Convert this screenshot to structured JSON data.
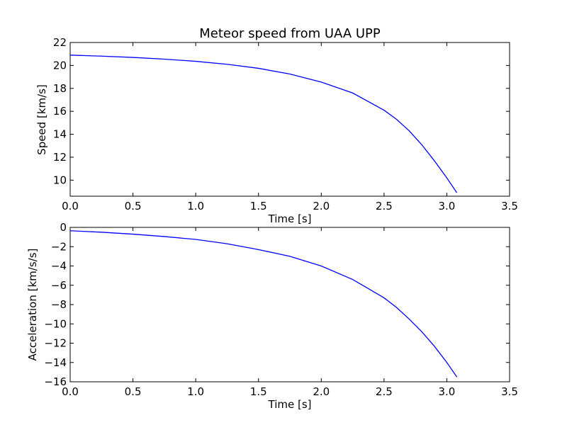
{
  "chart_data": [
    {
      "type": "line",
      "title": "Meteor speed from  UAA UPP",
      "xlabel": "Time [s]",
      "ylabel": "Speed [km/s]",
      "xlim": [
        0,
        3.5
      ],
      "ylim": [
        8.6,
        22
      ],
      "xticks": [
        0,
        0.5,
        1,
        1.5,
        2,
        2.5,
        3,
        3.5
      ],
      "xtick_labels": [
        "0.0",
        "0.5",
        "1.0",
        "1.5",
        "2.0",
        "2.5",
        "3.0",
        "3.5"
      ],
      "yticks": [
        10,
        12,
        14,
        16,
        18,
        20,
        22
      ],
      "ytick_labels": [
        "10",
        "12",
        "14",
        "16",
        "18",
        "20",
        "22"
      ],
      "grid": false,
      "series": [
        {
          "color": "#0000ff",
          "x": [
            0,
            0.25,
            0.5,
            0.75,
            1.0,
            1.25,
            1.5,
            1.75,
            2.0,
            2.25,
            2.5,
            2.6,
            2.7,
            2.8,
            2.9,
            3.0,
            3.08
          ],
          "y": [
            20.9,
            20.81,
            20.7,
            20.55,
            20.36,
            20.1,
            19.75,
            19.25,
            18.55,
            17.6,
            16.1,
            15.3,
            14.3,
            13.1,
            11.7,
            10.2,
            8.9
          ]
        }
      ]
    },
    {
      "type": "line",
      "title": "",
      "xlabel": "Time [s]",
      "ylabel": "Acceleration [km/s/s]",
      "xlim": [
        0,
        3.5
      ],
      "ylim": [
        -16,
        0
      ],
      "xticks": [
        0,
        0.5,
        1,
        1.5,
        2,
        2.5,
        3,
        3.5
      ],
      "xtick_labels": [
        "0.0",
        "0.5",
        "1.0",
        "1.5",
        "2.0",
        "2.5",
        "3.0",
        "3.5"
      ],
      "yticks": [
        0,
        -2,
        -4,
        -6,
        -8,
        -10,
        -12,
        -14,
        -16
      ],
      "ytick_labels": [
        "0",
        "−2",
        "−4",
        "−6",
        "−8",
        "−10",
        "−12",
        "−14",
        "−16"
      ],
      "grid": false,
      "series": [
        {
          "color": "#0000ff",
          "x": [
            0,
            0.25,
            0.5,
            0.75,
            1.0,
            1.25,
            1.5,
            1.75,
            2.0,
            2.25,
            2.5,
            2.6,
            2.7,
            2.8,
            2.9,
            3.0,
            3.08
          ],
          "y": [
            -0.35,
            -0.5,
            -0.7,
            -0.95,
            -1.25,
            -1.7,
            -2.3,
            -3.0,
            -4.0,
            -5.4,
            -7.3,
            -8.3,
            -9.5,
            -10.8,
            -12.3,
            -14.0,
            -15.5
          ]
        }
      ]
    }
  ]
}
